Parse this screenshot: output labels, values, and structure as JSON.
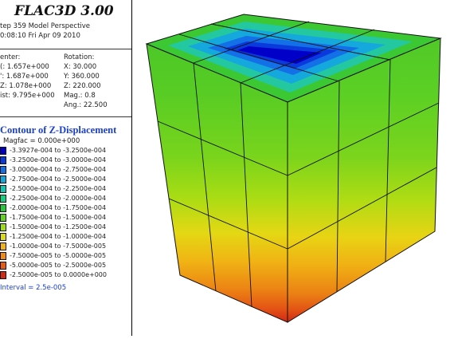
{
  "app": {
    "title": "FLAC3D 3.00"
  },
  "header": {
    "step_line": "tep 359  Model Perspective",
    "time_line": "0:08:10 Fri Apr 09 2010"
  },
  "view": {
    "center_label": "enter:",
    "rotation_label": "Rotation:",
    "x_center": "(: 1.657e+000",
    "y_center": "': 1.687e+000",
    "z_center": "Z: 1.078e+000",
    "dist": "ist: 9.795e+000",
    "x_rot": "X:  30.000",
    "y_rot": "Y: 360.000",
    "z_rot": "Z: 220.000",
    "mag": "Mag.:    0.8",
    "ang": "Ang.:  22.500"
  },
  "contour": {
    "title": "Contour of Z-Displacement",
    "magfac": "Magfac =  0.000e+000",
    "interval": "Interval =  2.5e-005",
    "ranges": [
      {
        "label": "-3.3927e-004 to -3.2500e-004",
        "color": "#0000c8"
      },
      {
        "label": "-3.2500e-004 to -3.0000e-004",
        "color": "#0a3adc"
      },
      {
        "label": "-3.0000e-004 to -2.7500e-004",
        "color": "#1470e6"
      },
      {
        "label": "-2.7500e-004 to -2.5000e-004",
        "color": "#12a8dc"
      },
      {
        "label": "-2.5000e-004 to -2.2500e-004",
        "color": "#10c8b4"
      },
      {
        "label": "-2.2500e-004 to -2.0000e-004",
        "color": "#10d282"
      },
      {
        "label": "-2.0000e-004 to -1.7500e-004",
        "color": "#28c83c"
      },
      {
        "label": "-1.7500e-004 to -1.5000e-004",
        "color": "#64d21e"
      },
      {
        "label": "-1.5000e-004 to -1.2500e-004",
        "color": "#a0dc14"
      },
      {
        "label": "-1.2500e-004 to -1.0000e-004",
        "color": "#dcdc14"
      },
      {
        "label": "-1.0000e-004 to -7.5000e-005",
        "color": "#f0b414"
      },
      {
        "label": "-7.5000e-005 to -5.0000e-005",
        "color": "#f08c14"
      },
      {
        "label": "-5.0000e-005 to -2.5000e-005",
        "color": "#e65a14"
      },
      {
        "label": "-2.5000e-005 to  0.0000e+000",
        "color": "#d22814"
      }
    ]
  }
}
